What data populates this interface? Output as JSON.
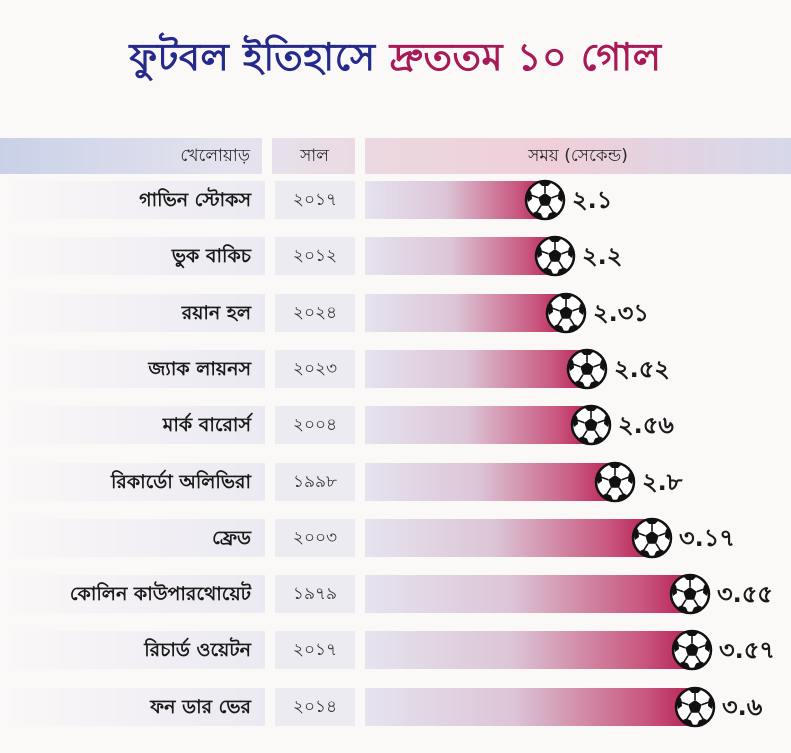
{
  "title": {
    "part1": "ফুটবল ইতিহাসে",
    "part2": "দ্রুততম ১০ গোল",
    "color_part1": "#232a8c",
    "color_part2": "#a81a55"
  },
  "headers": {
    "player": "খেলোয়াড়",
    "year": "সাল",
    "time": "সময় (সেকেন্ড)"
  },
  "chart_data": {
    "type": "bar",
    "orientation": "horizontal",
    "icon": "football-icon",
    "bar_colors": [
      "#e6e3ef",
      "#b61e53"
    ],
    "columns": [
      "খেলোয়াড়",
      "সাল",
      "সময় (সেকেন্ড)"
    ],
    "rows": [
      {
        "player": "গাভিন স্টোকস",
        "year": "২০১৭",
        "label": "২.১",
        "value": 2.1
      },
      {
        "player": "ভুক বাকিচ",
        "year": "২০১২",
        "label": "২.২",
        "value": 2.2
      },
      {
        "player": "রয়ান হল",
        "year": "২০২৪",
        "label": "২.৩১",
        "value": 2.31
      },
      {
        "player": "জ্যাক লায়নস",
        "year": "২০২৩",
        "label": "২.৫২",
        "value": 2.52
      },
      {
        "player": "মার্ক বারোর্স",
        "year": "২০০৪",
        "label": "২.৫৬",
        "value": 2.56
      },
      {
        "player": "রিকার্ডো অলিভিরা",
        "year": "১৯৯৮",
        "label": "২.৮",
        "value": 2.8
      },
      {
        "player": "ফ্রেড",
        "year": "২০০৩",
        "label": "৩.১৭",
        "value": 3.17
      },
      {
        "player": "কোলিন কাউপারথোয়েট",
        "year": "১৯৭৯",
        "label": "৩.৫৫",
        "value": 3.55
      },
      {
        "player": "রিচার্ড ওয়েটন",
        "year": "২০১৭",
        "label": "৩.৫৭",
        "value": 3.57
      },
      {
        "player": "ফন ডার ভের",
        "year": "২০১৪",
        "label": "৩.৬",
        "value": 3.6
      }
    ]
  }
}
